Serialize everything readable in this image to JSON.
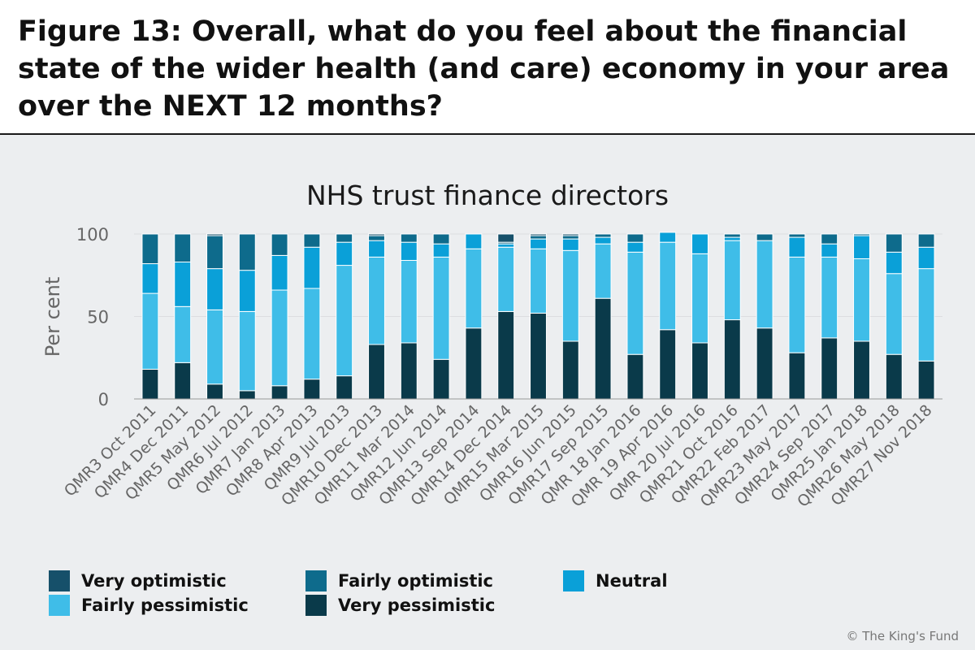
{
  "figure_title": "Figure 13: Overall, what do you feel about the financial state of the wider health (and care) economy in your area over the NEXT 12 months?",
  "copyright": "© The King's Fund",
  "colors": {
    "background": "#eceef0",
    "very_optimistic": "#16506a",
    "fairly_optimistic": "#0e6b8c",
    "neutral": "#0aa0d8",
    "fairly_pessimistic": "#3fbde8",
    "very_pessimistic": "#0a3a4a",
    "axis_text": "#666666",
    "gridline": "#dcdde0"
  },
  "chart_data": {
    "type": "bar",
    "stacked": true,
    "title": "NHS trust finance directors",
    "xlabel": "",
    "ylabel": "Per cent",
    "ylim": [
      0,
      100
    ],
    "yticks": [
      0,
      50,
      100
    ],
    "grid": true,
    "legend_position": "bottom",
    "categories": [
      "QMR3 Oct 2011",
      "QMR4 Dec 2011",
      "QMR5 May 2012",
      "QMR6 Jul 2012",
      "QMR7 Jan 2013",
      "QMR8 Apr 2013",
      "QMR9 Jul 2013",
      "QMR10 Dec 2013",
      "QMR11 Mar 2014",
      "QMR12 Jun 2014",
      "QMR13 Sep 2014",
      "QMR14 Dec 2014",
      "QMR15 Mar 2015",
      "QMR16 Jun 2015",
      "QMR17 Sep 2015",
      "QMR 18 Jan 2016",
      "QMR 19 Apr 2016",
      "QMR 20 Jul 2016",
      "QMR21 Oct 2016",
      "QMR22 Feb 2017",
      "QMR23 May 2017",
      "QMR24 Sep 2017",
      "QMR25 Jan 2018",
      "QMR26 May 2018",
      "QMR27 Nov 2018"
    ],
    "series": [
      {
        "name": "Very pessimistic",
        "key": "very_pessimistic",
        "values": [
          18,
          22,
          9,
          5,
          8,
          12,
          14,
          33,
          34,
          24,
          43,
          53,
          52,
          35,
          61,
          27,
          42,
          34,
          48,
          43,
          28,
          37,
          35,
          27,
          23
        ]
      },
      {
        "name": "Fairly pessimistic",
        "key": "fairly_pessimistic",
        "values": [
          46,
          34,
          45,
          48,
          58,
          55,
          67,
          53,
          50,
          62,
          48,
          39,
          39,
          55,
          33,
          62,
          53,
          54,
          48,
          53,
          58,
          49,
          50,
          49,
          56
        ]
      },
      {
        "name": "Neutral",
        "key": "neutral",
        "values": [
          18,
          27,
          25,
          25,
          21,
          25,
          14,
          10,
          11,
          8,
          9,
          2,
          6,
          7,
          4,
          6,
          6,
          12,
          2,
          0,
          12,
          8,
          14,
          13,
          13
        ]
      },
      {
        "name": "Fairly optimistic",
        "key": "fairly_optimistic",
        "values": [
          18,
          17,
          20,
          22,
          13,
          8,
          5,
          3,
          5,
          6,
          0,
          1,
          2,
          2,
          2,
          5,
          0,
          0,
          2,
          4,
          2,
          6,
          1,
          11,
          8
        ]
      },
      {
        "name": "Very optimistic",
        "key": "very_optimistic",
        "values": [
          0,
          0,
          1,
          0,
          0,
          0,
          0,
          1,
          0,
          0,
          0,
          5,
          1,
          1,
          0,
          0,
          0,
          0,
          0,
          0,
          0,
          0,
          0,
          0,
          0
        ]
      }
    ]
  },
  "legend": [
    {
      "label": "Very optimistic",
      "key": "very_optimistic"
    },
    {
      "label": "Fairly optimistic",
      "key": "fairly_optimistic"
    },
    {
      "label": "Neutral",
      "key": "neutral"
    },
    {
      "label": "Fairly pessimistic",
      "key": "fairly_pessimistic"
    },
    {
      "label": "Very pessimistic",
      "key": "very_pessimistic"
    }
  ]
}
